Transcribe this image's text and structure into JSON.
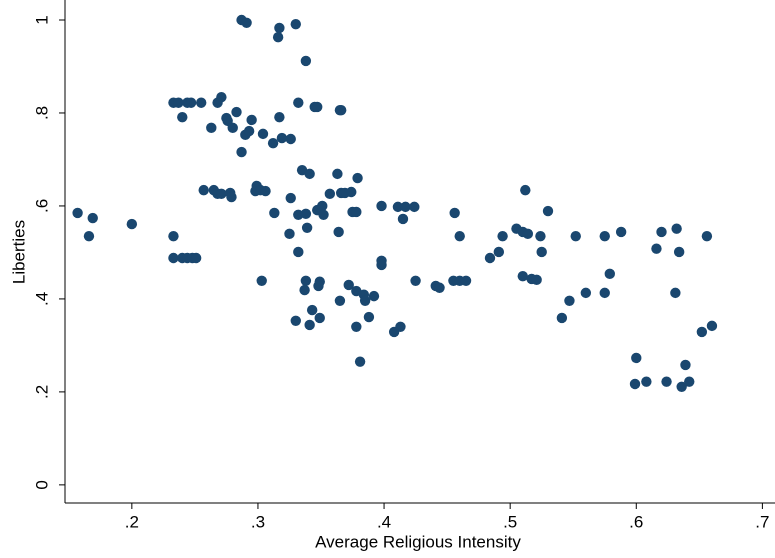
{
  "chart_data": {
    "type": "scatter",
    "x_label": "Average Religious Intensity",
    "y_label": "Liberties",
    "color": "#1a476f",
    "x": [
      0.157,
      0.169,
      0.166,
      0.2,
      0.233,
      0.233,
      0.24,
      0.244,
      0.248,
      0.251,
      0.233,
      0.237,
      0.244,
      0.247,
      0.255,
      0.24,
      0.271,
      0.268,
      0.263,
      0.275,
      0.276,
      0.283,
      0.28,
      0.287,
      0.29,
      0.293,
      0.295,
      0.287,
      0.291,
      0.317,
      0.316,
      0.33,
      0.338,
      0.304,
      0.312,
      0.317,
      0.319,
      0.326,
      0.332,
      0.345,
      0.347,
      0.365,
      0.366,
      0.257,
      0.265,
      0.268,
      0.271,
      0.278,
      0.279,
      0.299,
      0.298,
      0.302,
      0.306,
      0.303,
      0.313,
      0.326,
      0.325,
      0.335,
      0.341,
      0.332,
      0.338,
      0.347,
      0.351,
      0.352,
      0.339,
      0.332,
      0.338,
      0.337,
      0.349,
      0.348,
      0.343,
      0.349,
      0.33,
      0.341,
      0.357,
      0.363,
      0.366,
      0.369,
      0.374,
      0.364,
      0.379,
      0.375,
      0.378,
      0.372,
      0.365,
      0.378,
      0.384,
      0.385,
      0.392,
      0.388,
      0.378,
      0.381,
      0.398,
      0.398,
      0.398,
      0.408,
      0.413,
      0.411,
      0.417,
      0.424,
      0.415,
      0.425,
      0.441,
      0.444,
      0.456,
      0.46,
      0.455,
      0.46,
      0.465,
      0.484,
      0.491,
      0.494,
      0.505,
      0.51,
      0.514,
      0.512,
      0.51,
      0.517,
      0.521,
      0.524,
      0.525,
      0.53,
      0.541,
      0.547,
      0.552,
      0.56,
      0.575,
      0.575,
      0.579,
      0.588,
      0.6,
      0.599,
      0.608,
      0.616,
      0.62,
      0.624,
      0.632,
      0.634,
      0.631,
      0.636,
      0.639,
      0.642,
      0.652,
      0.656,
      0.66
    ],
    "y": [
      0.585,
      0.574,
      0.535,
      0.561,
      0.535,
      0.488,
      0.488,
      0.488,
      0.488,
      0.488,
      0.822,
      0.822,
      0.822,
      0.822,
      0.822,
      0.791,
      0.834,
      0.822,
      0.768,
      0.789,
      0.783,
      0.802,
      0.768,
      0.716,
      0.753,
      0.761,
      0.785,
      1.0,
      0.994,
      0.983,
      0.963,
      0.991,
      0.912,
      0.755,
      0.735,
      0.791,
      0.746,
      0.744,
      0.822,
      0.813,
      0.813,
      0.806,
      0.806,
      0.634,
      0.634,
      0.626,
      0.626,
      0.628,
      0.619,
      0.643,
      0.632,
      0.634,
      0.632,
      0.439,
      0.585,
      0.617,
      0.54,
      0.677,
      0.669,
      0.581,
      0.583,
      0.591,
      0.6,
      0.581,
      0.553,
      0.501,
      0.439,
      0.419,
      0.437,
      0.428,
      0.376,
      0.359,
      0.353,
      0.344,
      0.626,
      0.669,
      0.628,
      0.628,
      0.63,
      0.544,
      0.66,
      0.587,
      0.587,
      0.43,
      0.396,
      0.417,
      0.409,
      0.396,
      0.406,
      0.361,
      0.34,
      0.265,
      0.6,
      0.482,
      0.473,
      0.329,
      0.34,
      0.598,
      0.598,
      0.598,
      0.572,
      0.439,
      0.428,
      0.424,
      0.585,
      0.535,
      0.439,
      0.439,
      0.439,
      0.488,
      0.501,
      0.535,
      0.551,
      0.544,
      0.54,
      0.634,
      0.449,
      0.443,
      0.441,
      0.535,
      0.501,
      0.589,
      0.359,
      0.396,
      0.535,
      0.413,
      0.413,
      0.535,
      0.454,
      0.544,
      0.273,
      0.217,
      0.222,
      0.508,
      0.544,
      0.222,
      0.551,
      0.501,
      0.413,
      0.211,
      0.258,
      0.222,
      0.329,
      0.535,
      0.342
    ],
    "xlim": [
      0.147,
      0.71
    ],
    "ylim": [
      -0.039,
      1.043
    ],
    "xticks": [
      {
        "value": 0.2,
        "label": ".2"
      },
      {
        "value": 0.3,
        "label": ".3"
      },
      {
        "value": 0.4,
        "label": ".4"
      },
      {
        "value": 0.5,
        "label": ".5"
      },
      {
        "value": 0.6,
        "label": ".6"
      },
      {
        "value": 0.7,
        "label": ".7"
      }
    ],
    "yticks": [
      0,
      {
        "value": 0.2,
        "label": ".2"
      },
      {
        "value": 0.4,
        "label": ".4"
      },
      {
        "value": 0.6,
        "label": ".6"
      },
      {
        "value": 0.8,
        "label": ".8"
      },
      1
    ]
  }
}
